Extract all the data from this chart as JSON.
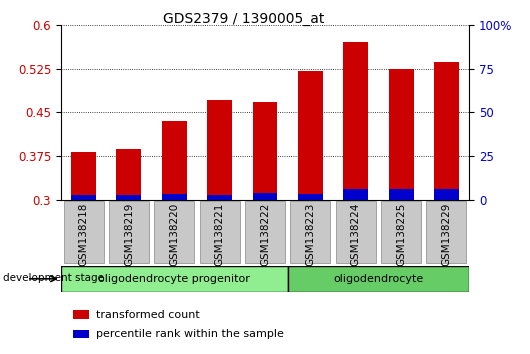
{
  "title": "GDS2379 / 1390005_at",
  "samples": [
    "GSM138218",
    "GSM138219",
    "GSM138220",
    "GSM138221",
    "GSM138222",
    "GSM138223",
    "GSM138224",
    "GSM138225",
    "GSM138229"
  ],
  "red_values": [
    0.383,
    0.388,
    0.435,
    0.471,
    0.468,
    0.521,
    0.571,
    0.524,
    0.537
  ],
  "blue_values": [
    0.008,
    0.008,
    0.01,
    0.009,
    0.012,
    0.01,
    0.018,
    0.018,
    0.018
  ],
  "ymin": 0.3,
  "ymax": 0.6,
  "yticks_left": [
    0.3,
    0.375,
    0.45,
    0.525,
    0.6
  ],
  "yticks_right": [
    0,
    25,
    50,
    75,
    100
  ],
  "bar_width": 0.55,
  "red_color": "#cc0000",
  "blue_color": "#0000cc",
  "groups": [
    {
      "label": "oligodendrocyte progenitor",
      "start": 0,
      "end": 5,
      "color": "#90ee90"
    },
    {
      "label": "oligodendrocyte",
      "start": 5,
      "end": 9,
      "color": "#90ee90"
    }
  ],
  "group_label": "development stage",
  "legend_items": [
    {
      "label": "transformed count",
      "color": "#cc0000"
    },
    {
      "label": "percentile rank within the sample",
      "color": "#0000cc"
    }
  ],
  "xtick_bg_color": "#c8c8c8",
  "spine_color": "#000000",
  "dotted_line_color": "#000000",
  "fig_width": 5.3,
  "fig_height": 3.54,
  "dpi": 100
}
